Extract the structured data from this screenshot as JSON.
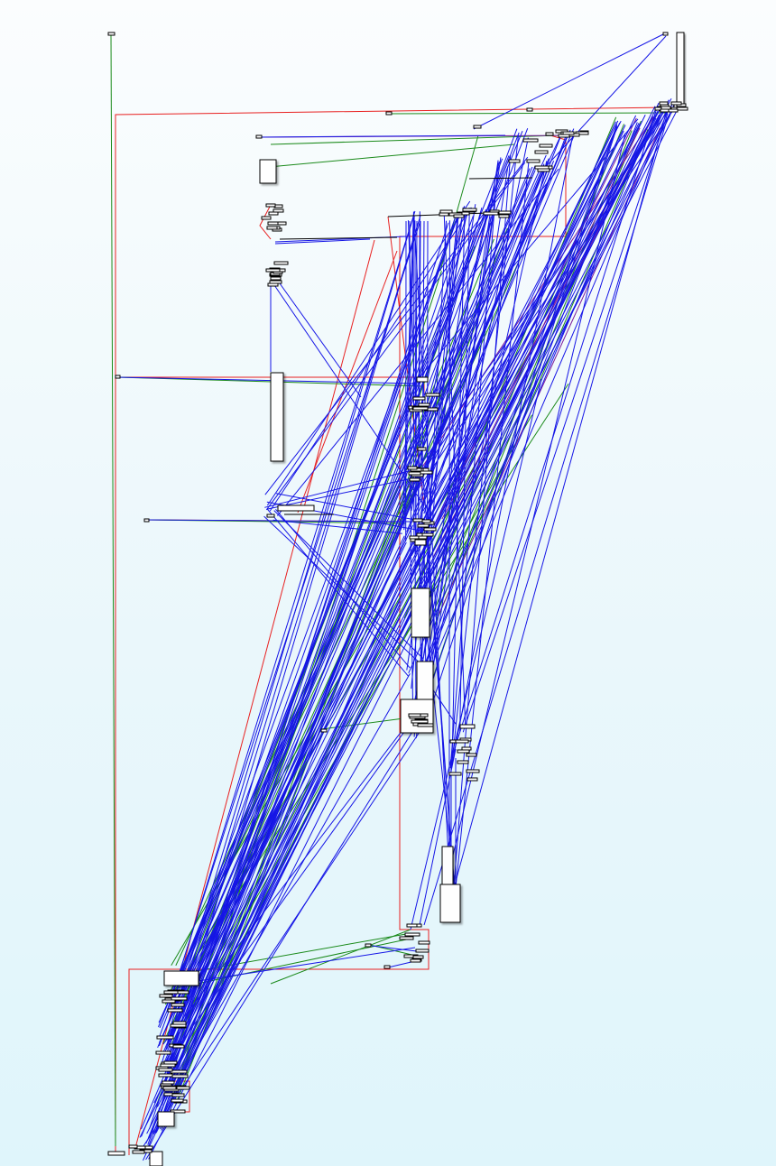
{
  "diagram": {
    "kind": "dependency-graph",
    "background": [
      "#fbfdfe",
      "#dff5fb"
    ],
    "edge_colors": {
      "blue": "#1515e6",
      "green": "#1a8a1a",
      "red": "#e82020",
      "purple": "#7a1a9a"
    },
    "node_fill": "#ffffff",
    "node_stroke": "#000000",
    "labels_legible": false
  }
}
